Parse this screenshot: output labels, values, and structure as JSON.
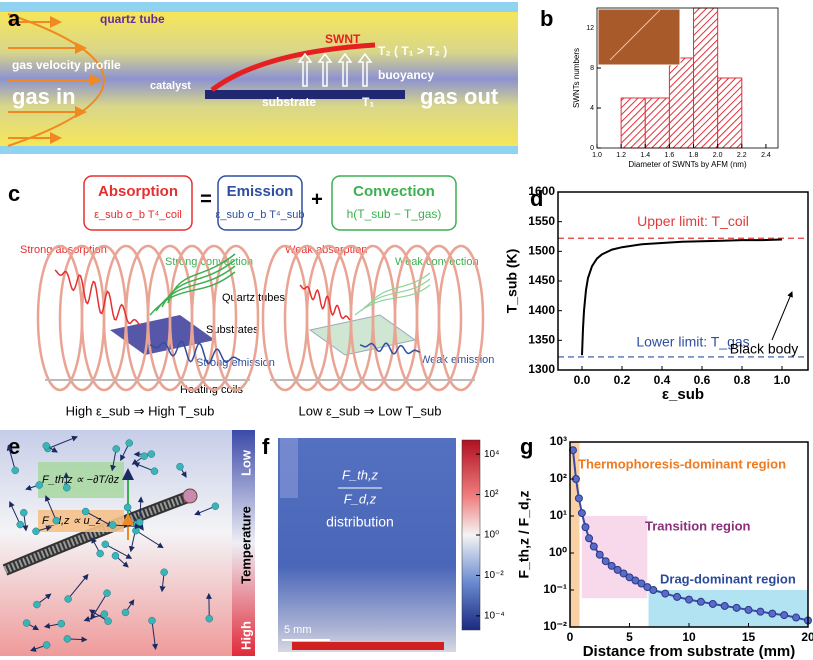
{
  "panel_labels": [
    "a",
    "b",
    "c",
    "d",
    "e",
    "f",
    "g"
  ],
  "panel_a": {
    "quartz_tube": "quartz tube",
    "gas_velocity_profile": "gas velocity profile",
    "gas_in": "gas in",
    "catalyst": "catalyst",
    "swnt": "SWNT",
    "temperature": "T₂ ( T₁ > T₂ )",
    "buoyancy": "buoyancy",
    "substrate": "substrate",
    "t1": "T₁",
    "gas_out": "gas out"
  },
  "panel_c": {
    "absorption": {
      "title": "Absorption",
      "formula": "ε_sub σ_b T⁴_coil"
    },
    "equals": "=",
    "emission": {
      "title": "Emission",
      "formula": "ε_sub σ_b T⁴_sub"
    },
    "plus": "+",
    "convection": {
      "title": "Convection",
      "formula": "h(T_sub − T_gas)"
    },
    "strong_absorption": "Strong absorption",
    "strong_convection": "Strong convection",
    "quartz_tubes": "Quartz tubes",
    "substrates": "Substrates",
    "strong_emission": "Strong emission",
    "heating_coils": "Heating coils",
    "weak_absorption": "Weak absorption",
    "weak_convection": "Weak convection",
    "weak_emission": "Weak emission",
    "high_caption": "High ε_sub ⇒ High T_sub",
    "low_caption": "Low ε_sub ⇒ Low T_sub"
  },
  "panel_e": {
    "thermophoretic_force": "F_th,z ∝ −∂T/∂z",
    "drag_force": "F_d,z ∝ u_z",
    "low": "Low",
    "temperature": "Temperature",
    "high": "High"
  },
  "panel_f": {
    "numerator": "F_th,z",
    "denominator": "F_d,z",
    "label": "distribution",
    "scale_bar": "5 mm",
    "colorbar": {
      "lim": [
        2e-05,
        50000
      ],
      "ticks": [
        {
          "value": 10000,
          "label": "10⁴"
        },
        {
          "value": 100,
          "label": "10²"
        },
        {
          "value": 1,
          "label": "10⁰"
        },
        {
          "value": 0.01,
          "label": "10⁻²"
        },
        {
          "value": 0.0001,
          "label": "10⁻⁴"
        }
      ]
    }
  },
  "chart_data": [
    {
      "type": "histogram",
      "bins": [
        1.2,
        1.4,
        1.6,
        1.8,
        2.0,
        2.2
      ],
      "values": [
        5,
        5,
        9,
        14,
        7
      ],
      "color": "#e0303a",
      "xlabel": "Diameter of SWNTs by AFM (nm)",
      "ylabel": "SWNTs numbers",
      "xlim": [
        1.0,
        2.5
      ],
      "xticks": [
        {
          "value": 1,
          "label": "1.0"
        },
        1.2,
        1.4,
        1.6,
        1.8,
        {
          "value": 2,
          "label": "2.0"
        },
        2.2,
        2.4
      ],
      "ylim": [
        0,
        14
      ],
      "yticks": [
        0,
        4,
        8,
        12
      ]
    },
    {
      "type": "line",
      "x": [
        0,
        0.005,
        0.01,
        0.02,
        0.03,
        0.05,
        0.075,
        0.1,
        0.15,
        0.2,
        0.3,
        0.4,
        0.5,
        0.6,
        0.7,
        0.8,
        0.9,
        1.0
      ],
      "series": [
        {
          "color": "#000000",
          "values": [
            1325,
            1370,
            1400,
            1435,
            1455,
            1475,
            1488,
            1495,
            1503,
            1507,
            1512,
            1514,
            1516,
            1517,
            1518,
            1519,
            1519,
            1520
          ]
        }
      ],
      "ref_lines": [
        {
          "value": 1522,
          "label": "Upper limit: T_coil",
          "color": "#e03a3a"
        },
        {
          "value": 1322,
          "label": "Lower limit: T_gas",
          "color": "#2f4fa0"
        }
      ],
      "annotation": "Black body",
      "xlabel": "ε_sub",
      "ylabel": "T_sub (K)",
      "xlim": [
        -0.12,
        1.13
      ],
      "xticks": [
        {
          "value": 0,
          "label": "0.0"
        },
        0.2,
        0.4,
        0.6,
        0.8,
        {
          "value": 1,
          "label": "1.0"
        }
      ],
      "ylim": [
        1300,
        1600
      ],
      "yticks": [
        1300,
        1350,
        1400,
        1450,
        1500,
        1550,
        1600
      ]
    },
    {
      "type": "line",
      "markers": true,
      "ylog": true,
      "x": [
        0.25,
        0.5,
        0.75,
        1.0,
        1.3,
        1.6,
        2,
        2.5,
        3,
        3.5,
        4,
        4.5,
        5,
        5.5,
        6,
        6.5,
        7,
        8,
        9,
        10,
        11,
        12,
        13,
        14,
        15,
        16,
        17,
        18,
        19,
        20
      ],
      "series": [
        {
          "color": "#3a4aa8",
          "values": [
            600,
            100,
            30,
            12,
            5,
            2.5,
            1.5,
            0.9,
            0.6,
            0.45,
            0.35,
            0.28,
            0.22,
            0.18,
            0.15,
            0.12,
            0.1,
            0.08,
            0.065,
            0.055,
            0.048,
            0.042,
            0.037,
            0.033,
            0.029,
            0.026,
            0.023,
            0.021,
            0.018,
            0.015
          ]
        }
      ],
      "regions": [
        {
          "label": "Thermophoresis-dominant region",
          "x": [
            0,
            0.8
          ],
          "y": [
            0.01,
            1000
          ],
          "color": "#f9c48e",
          "text_color": "#f07a20"
        },
        {
          "label": "Transition region",
          "x": [
            1,
            6.5
          ],
          "y": [
            0.06,
            10
          ],
          "color": "#f6cfe6",
          "text_color": "#8a2f7a"
        },
        {
          "label": "Drag-dominant region",
          "x": [
            6.6,
            20
          ],
          "y": [
            0.01,
            0.1
          ],
          "color": "#9fdcf0",
          "text_color": "#2a4a9a"
        }
      ],
      "xlabel": "Distance from substrate (mm)",
      "ylabel": "F_th,z / F_d,z",
      "xlim": [
        0,
        20
      ],
      "xticks": [
        0,
        5,
        10,
        15,
        20
      ],
      "ylim": [
        0.01,
        1000
      ],
      "yticks": [
        {
          "value": 0.01,
          "label": "10⁻²"
        },
        {
          "value": 0.1,
          "label": "10⁻¹"
        },
        {
          "value": 1,
          "label": "10⁰"
        },
        {
          "value": 10,
          "label": "10¹"
        },
        {
          "value": 100,
          "label": "10²"
        },
        {
          "value": 1000,
          "label": "10³"
        }
      ]
    }
  ]
}
